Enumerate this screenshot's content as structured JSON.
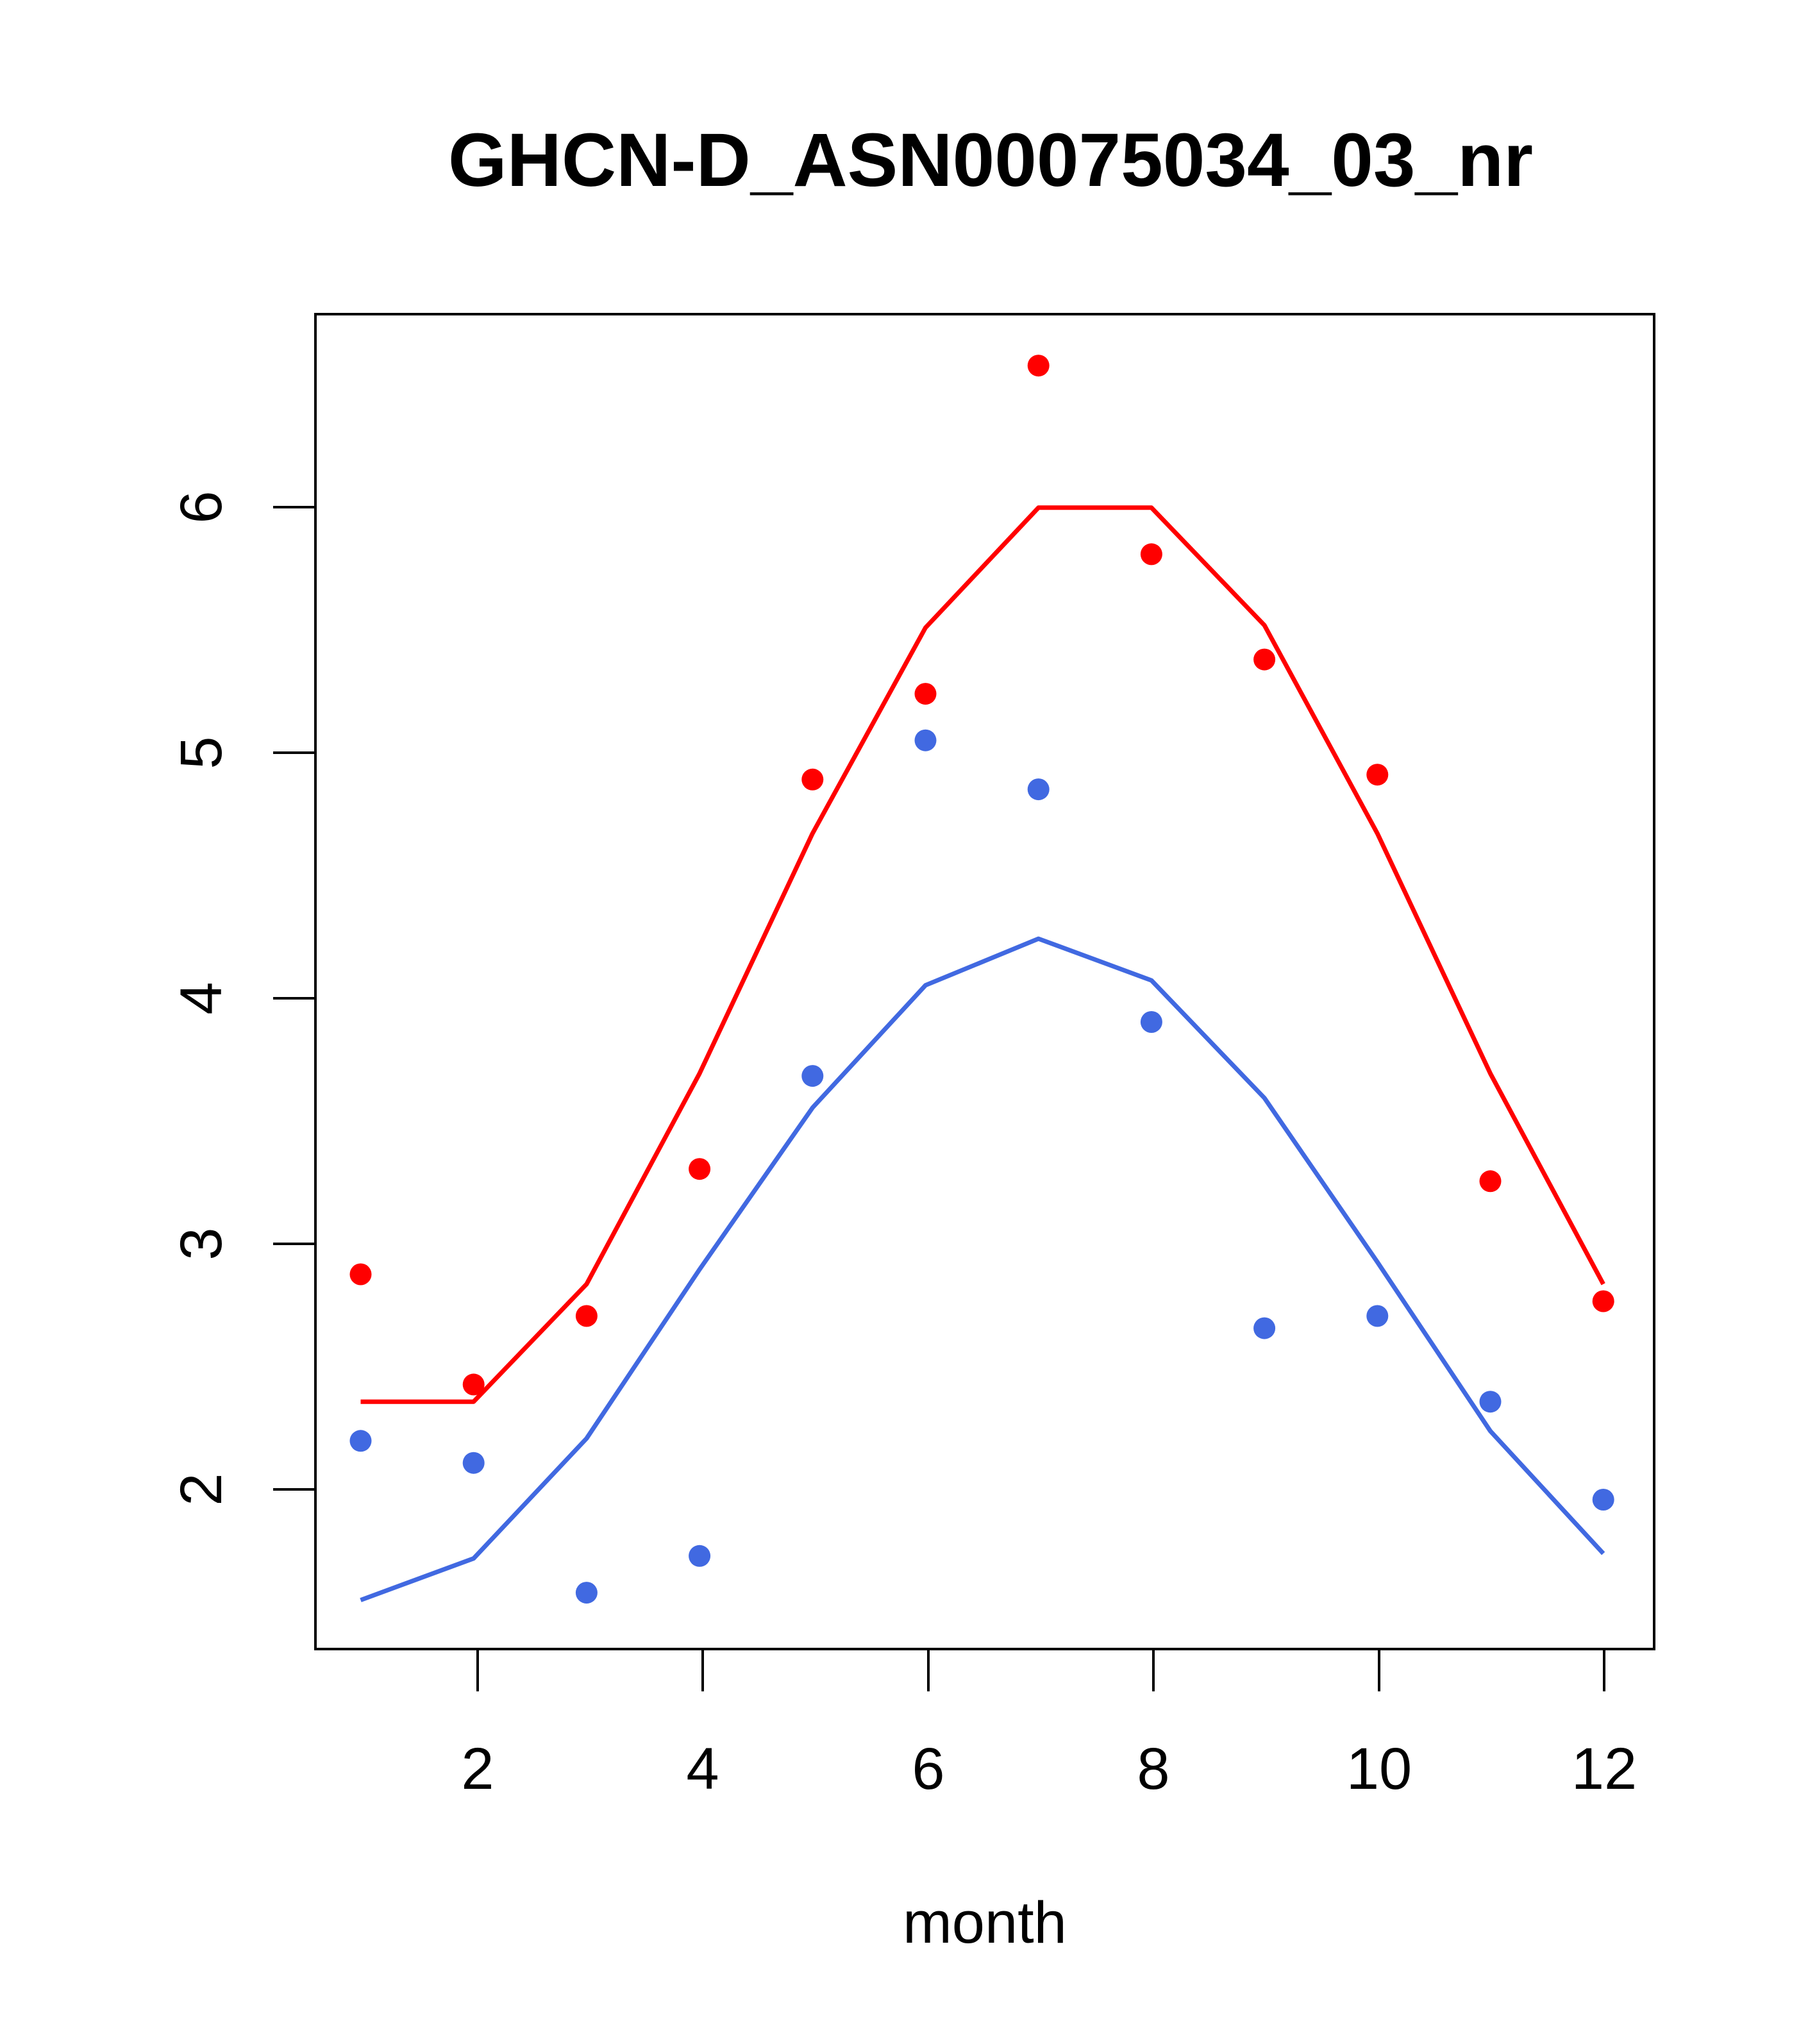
{
  "chart_data": {
    "type": "scatter",
    "title": "GHCN-D_ASN00075034_03_nr",
    "xlabel": "month",
    "ylabel": "",
    "xlim": [
      0.6,
      12.45
    ],
    "ylim": [
      1.35,
      6.8
    ],
    "xticks": [
      "2",
      "4",
      "6",
      "8",
      "10",
      "12"
    ],
    "yticks": [
      "2",
      "3",
      "4",
      "5",
      "6"
    ],
    "grid": false,
    "series": [
      {
        "color": "#ff0000",
        "points": [
          2.88,
          2.43,
          2.71,
          3.31,
          4.9,
          5.25,
          6.59,
          5.82,
          5.39,
          4.92,
          3.26,
          2.77
        ],
        "line": [
          2.36,
          2.36,
          2.84,
          3.7,
          4.68,
          5.52,
          6.01,
          6.01,
          5.53,
          4.68,
          3.7,
          2.84
        ]
      },
      {
        "color": "#4169e1",
        "points": [
          2.2,
          2.11,
          1.58,
          1.73,
          3.69,
          5.06,
          4.86,
          3.91,
          2.66,
          2.71,
          2.36,
          1.96
        ],
        "line": [
          1.55,
          1.72,
          2.21,
          2.9,
          3.56,
          4.06,
          4.25,
          4.08,
          3.6,
          2.93,
          2.24,
          1.74
        ]
      }
    ]
  }
}
